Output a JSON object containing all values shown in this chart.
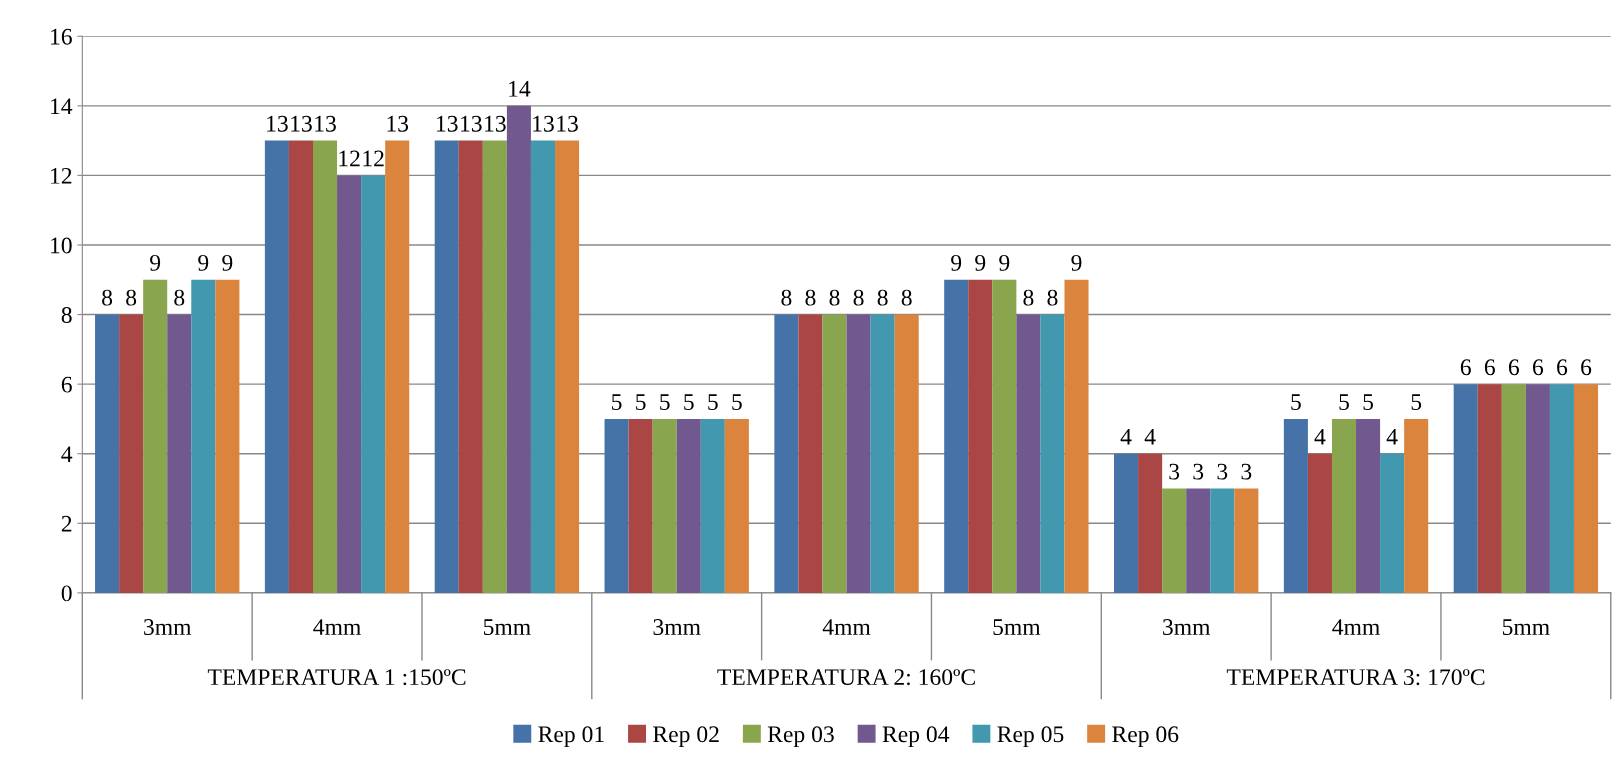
{
  "chart_data": {
    "type": "bar",
    "categories": [
      "3mm",
      "4mm",
      "5mm",
      "3mm",
      "4mm",
      "5mm",
      "3mm",
      "4mm",
      "5mm"
    ],
    "annotations": [
      "TEMPERATURA 1 :150ºC",
      "TEMPERATURA 2: 160ºC",
      "TEMPERATURA 3: 170ºC"
    ],
    "series": [
      {
        "name": "Rep 01",
        "color": "#4572a7",
        "values": [
          8,
          13,
          13,
          5,
          8,
          9,
          4,
          5,
          6
        ]
      },
      {
        "name": "Rep 02",
        "color": "#aa4643",
        "values": [
          8,
          13,
          13,
          5,
          8,
          9,
          4,
          4,
          6
        ]
      },
      {
        "name": "Rep 03",
        "color": "#89a54e",
        "values": [
          9,
          13,
          13,
          5,
          8,
          9,
          3,
          5,
          6
        ]
      },
      {
        "name": "Rep 04",
        "color": "#71588f",
        "values": [
          8,
          12,
          14,
          5,
          8,
          8,
          3,
          5,
          6
        ]
      },
      {
        "name": "Rep 05",
        "color": "#4198af",
        "values": [
          9,
          12,
          13,
          5,
          8,
          8,
          3,
          4,
          6
        ]
      },
      {
        "name": "Rep 06",
        "color": "#db843d",
        "values": [
          9,
          13,
          13,
          5,
          8,
          9,
          3,
          5,
          6
        ]
      }
    ],
    "ylim": [
      0,
      16
    ],
    "yticks": [
      0,
      2,
      4,
      6,
      8,
      10,
      12,
      14,
      16
    ],
    "grid": "y",
    "legend": "bottom",
    "data_labels": true
  }
}
